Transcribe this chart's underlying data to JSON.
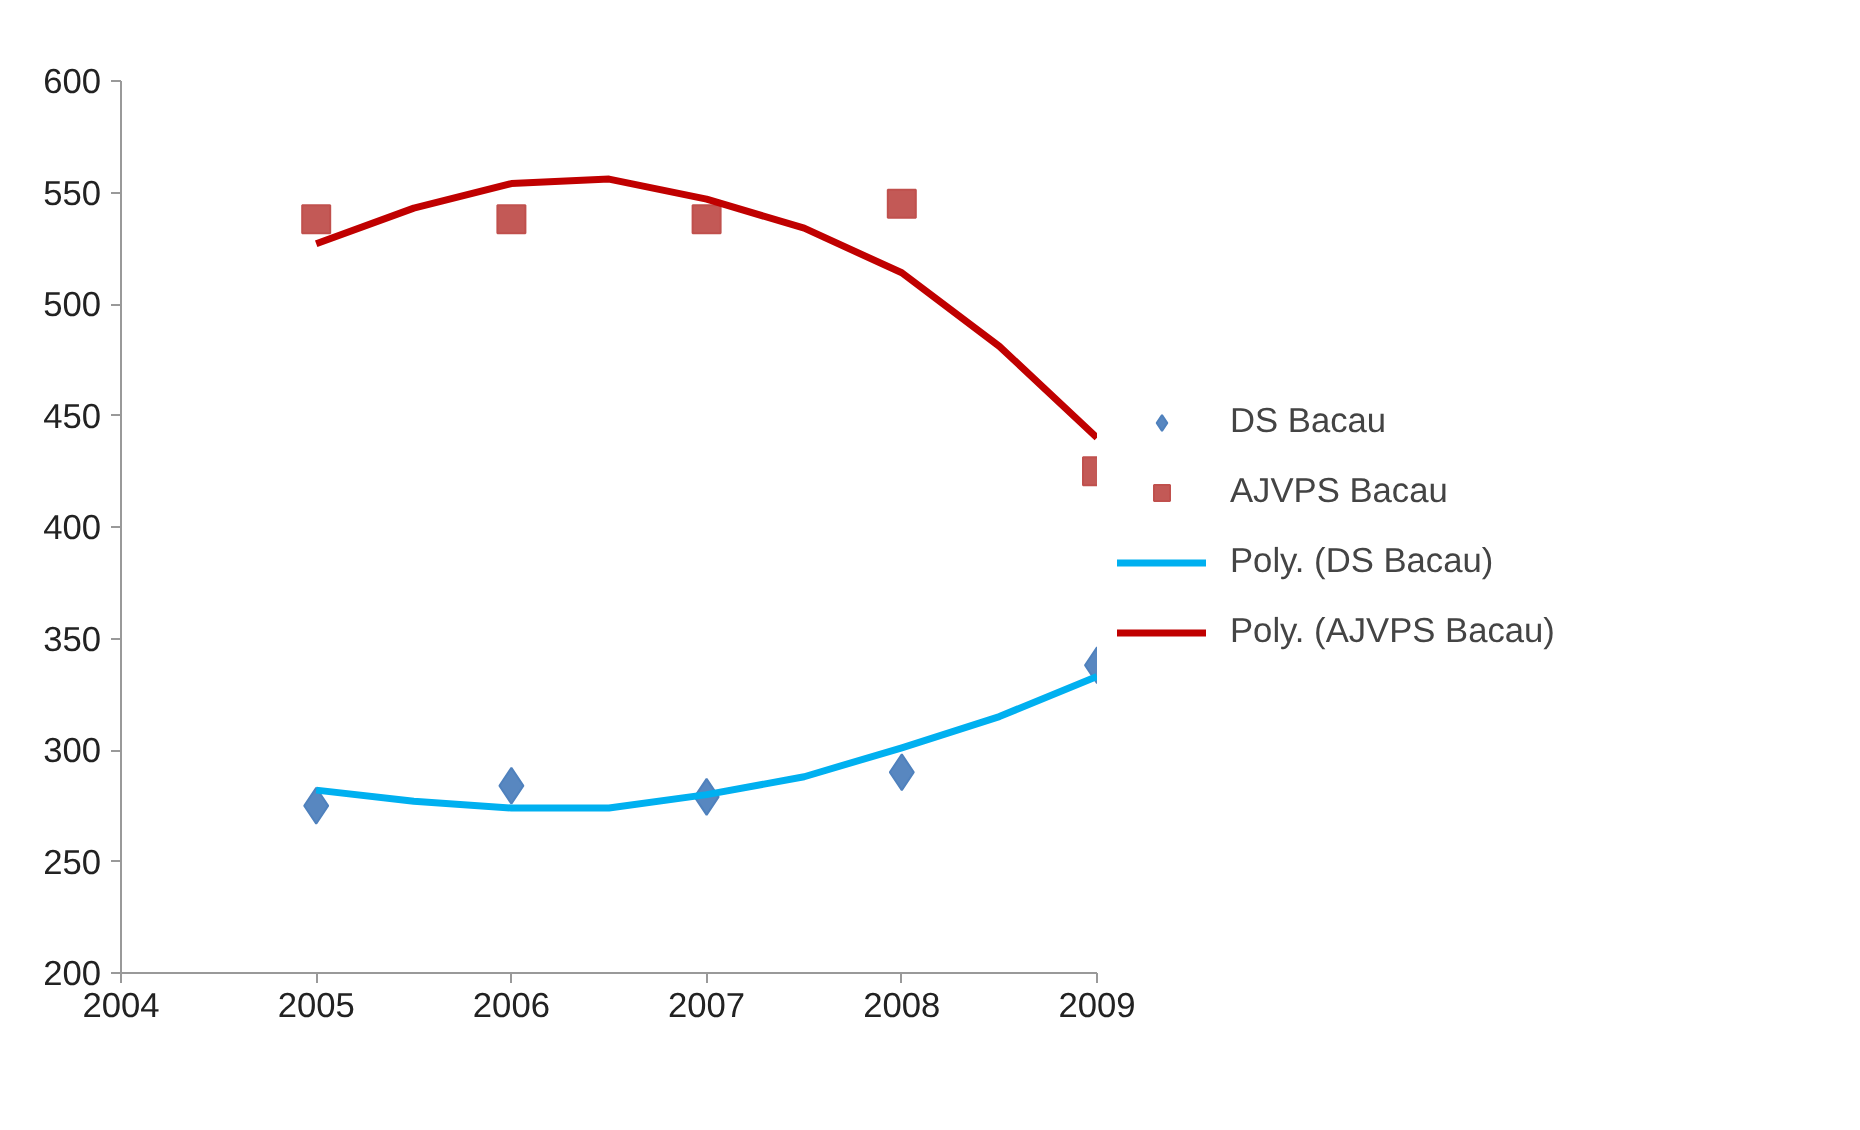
{
  "chart_data": {
    "type": "scatter",
    "x": [
      2005,
      2006,
      2007,
      2008,
      2009
    ],
    "xlim": [
      2004,
      2009
    ],
    "xticks": [
      2004,
      2005,
      2006,
      2007,
      2008,
      2009
    ],
    "ylim": [
      200,
      600
    ],
    "yticks": [
      200,
      250,
      300,
      350,
      400,
      450,
      500,
      550,
      600
    ],
    "grid": false,
    "legend": "right",
    "series": [
      {
        "name": "DS Bacau",
        "marker": "diamond",
        "color": "#4f81bd",
        "values": [
          275,
          284,
          279,
          290,
          338
        ]
      },
      {
        "name": "AJVPS Bacau",
        "marker": "square",
        "color": "#c0504d",
        "values": [
          538,
          538,
          538,
          545,
          425
        ]
      },
      {
        "name": "Poly. (DS Bacau)",
        "type": "line",
        "line_style": "solid",
        "color": "#00b0f0",
        "x": [
          2005,
          2005.5,
          2006,
          2006.5,
          2007,
          2007.5,
          2008,
          2008.5,
          2009
        ],
        "values": [
          282,
          277,
          274,
          274,
          280,
          288,
          301,
          315,
          333
        ]
      },
      {
        "name": "Poly. (AJVPS Bacau)",
        "type": "line",
        "line_style": "solid",
        "color": "#c00000",
        "x": [
          2005,
          2005.5,
          2006,
          2006.5,
          2007,
          2007.5,
          2008,
          2008.5,
          2009
        ],
        "values": [
          527,
          543,
          554,
          556,
          547,
          534,
          514,
          481,
          440
        ]
      }
    ]
  }
}
